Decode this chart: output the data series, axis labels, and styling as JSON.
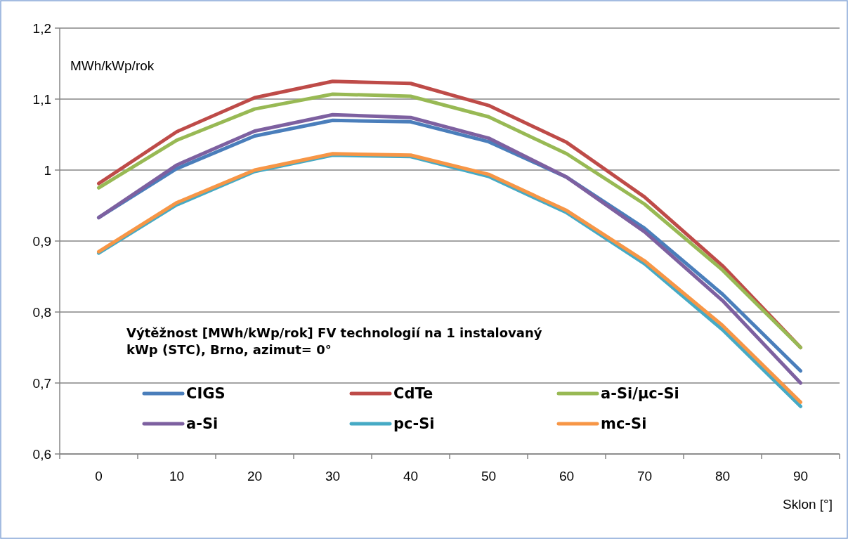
{
  "chart_data": {
    "type": "line",
    "title": "Výtěžnost [MWh/kWp/rok] FV technologií na 1 instalovaný kWp (STC), Brno, azimut= 0°",
    "ylabel": "MWh/kWp/rok",
    "xlabel": "Sklon [°]",
    "categories": [
      "0",
      "10",
      "20",
      "30",
      "40",
      "50",
      "60",
      "70",
      "80",
      "90"
    ],
    "ylim": [
      0.6,
      1.2
    ],
    "yticks": [
      {
        "value": 0.6,
        "label": "0,6"
      },
      {
        "value": 0.7,
        "label": "0,7"
      },
      {
        "value": 0.8,
        "label": "0,8"
      },
      {
        "value": 0.9,
        "label": "0,9"
      },
      1,
      {
        "value": 1.1,
        "label": "1,1"
      },
      {
        "value": 1.2,
        "label": "1,2"
      }
    ],
    "grid": "y",
    "legend": "bottom",
    "marker": "none",
    "line_style": "solid",
    "series": [
      {
        "name": "CIGS",
        "color": "#4a7ebb",
        "values": [
          0.933,
          1.002,
          1.048,
          1.07,
          1.068,
          1.04,
          0.99,
          0.918,
          0.825,
          0.717
        ]
      },
      {
        "name": "CdTe",
        "color": "#be4b48",
        "values": [
          0.981,
          1.054,
          1.102,
          1.125,
          1.122,
          1.091,
          1.039,
          0.962,
          0.865,
          0.75
        ]
      },
      {
        "name": "a-Si/µc-Si",
        "color": "#98b954",
        "values": [
          0.975,
          1.042,
          1.086,
          1.107,
          1.104,
          1.075,
          1.023,
          0.952,
          0.859,
          0.75
        ]
      },
      {
        "name": "a-Si",
        "color": "#7d60a0",
        "values": [
          0.933,
          1.007,
          1.055,
          1.078,
          1.074,
          1.045,
          0.99,
          0.913,
          0.816,
          0.7
        ]
      },
      {
        "name": "pc-Si",
        "color": "#46aac5",
        "values": [
          0.883,
          0.951,
          0.998,
          1.021,
          1.019,
          0.991,
          0.94,
          0.868,
          0.775,
          0.667
        ]
      },
      {
        "name": "mc-Si",
        "color": "#f79646",
        "values": [
          0.885,
          0.954,
          1.0,
          1.023,
          1.021,
          0.994,
          0.943,
          0.872,
          0.781,
          0.673
        ]
      }
    ]
  }
}
